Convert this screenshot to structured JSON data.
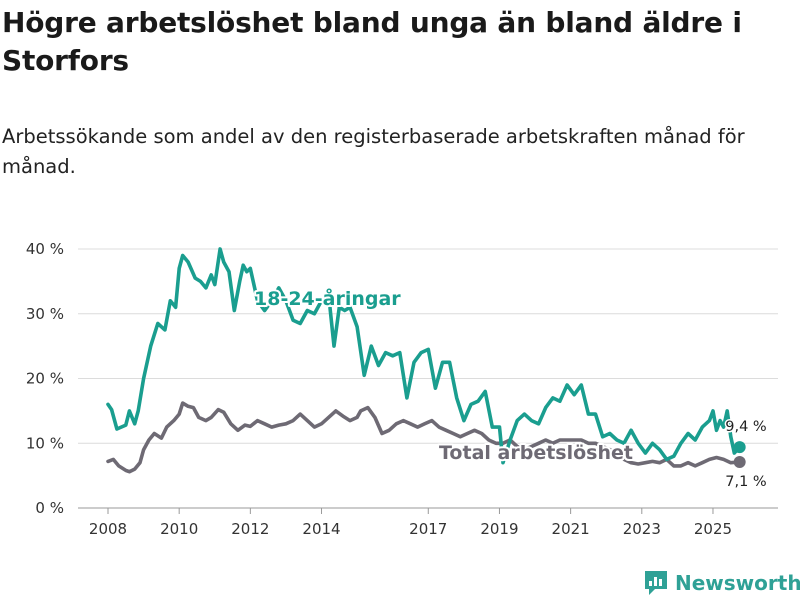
{
  "title": "Högre arbetslöshet bland unga än bland äldre i Storfors",
  "subtitle": "Arbetssökande som andel av den registerbaserade arbetskraften månad för månad.",
  "brand": {
    "name": "Newsworthy"
  },
  "colors": {
    "youth": "#1a9e8f",
    "total": "#6e6a74",
    "grid": "#dcdcdc"
  },
  "chart_data": {
    "type": "line",
    "title": "Högre arbetslöshet bland unga än bland äldre i Storfors",
    "xlabel": "",
    "ylabel": "",
    "ylim": [
      0,
      40
    ],
    "xlim": [
      2008.0,
      2025.9
    ],
    "yticks": [
      0,
      10,
      20,
      30,
      40
    ],
    "ytick_labels": [
      "0 %",
      "10 %",
      "20 %",
      "30 %",
      "40 %"
    ],
    "xticks": [
      2008,
      2010,
      2012,
      2014,
      2017,
      2019,
      2021,
      2023,
      2025
    ],
    "xtick_labels": [
      "2008",
      "2010",
      "2012",
      "2014",
      "2017",
      "2019",
      "2021",
      "2023",
      "2025"
    ],
    "grid": true,
    "series": [
      {
        "name": "18-24-åringar",
        "end_label": "9,4 %",
        "x": [
          2008.0,
          2008.1,
          2008.25,
          2008.5,
          2008.6,
          2008.75,
          2008.85,
          2009.0,
          2009.2,
          2009.4,
          2009.6,
          2009.75,
          2009.9,
          2010.0,
          2010.1,
          2010.25,
          2010.45,
          2010.6,
          2010.75,
          2010.9,
          2011.0,
          2011.15,
          2011.25,
          2011.4,
          2011.55,
          2011.7,
          2011.8,
          2011.9,
          2012.0,
          2012.2,
          2012.4,
          2012.6,
          2012.8,
          2013.0,
          2013.2,
          2013.4,
          2013.6,
          2013.8,
          2014.0,
          2014.2,
          2014.35,
          2014.5,
          2014.65,
          2014.8,
          2015.0,
          2015.2,
          2015.4,
          2015.6,
          2015.8,
          2016.0,
          2016.2,
          2016.4,
          2016.6,
          2016.8,
          2017.0,
          2017.2,
          2017.4,
          2017.6,
          2017.8,
          2018.0,
          2018.2,
          2018.4,
          2018.6,
          2018.8,
          2019.0,
          2019.1,
          2019.3,
          2019.5,
          2019.7,
          2019.9,
          2020.1,
          2020.3,
          2020.5,
          2020.7,
          2020.9,
          2021.1,
          2021.3,
          2021.5,
          2021.7,
          2021.9,
          2022.1,
          2022.3,
          2022.5,
          2022.7,
          2022.9,
          2023.1,
          2023.3,
          2023.5,
          2023.7,
          2023.9,
          2024.1,
          2024.3,
          2024.5,
          2024.7,
          2024.9,
          2025.0,
          2025.1,
          2025.2,
          2025.3,
          2025.4,
          2025.5,
          2025.6,
          2025.75
        ],
        "values": [
          16,
          15.2,
          12.2,
          12.8,
          15,
          13,
          15,
          20,
          25,
          28.5,
          27.5,
          32,
          31,
          37,
          39,
          38,
          35.5,
          35,
          34,
          36,
          34.5,
          40,
          38,
          36.5,
          30.5,
          35,
          37.5,
          36.5,
          37,
          32,
          30.5,
          32,
          34,
          32,
          29,
          28.5,
          30.5,
          30,
          32,
          33,
          25,
          31,
          30.5,
          31,
          28,
          20.5,
          25,
          22,
          24,
          23.5,
          24,
          17,
          22.5,
          24,
          24.5,
          18.5,
          22.5,
          22.5,
          17,
          13.5,
          16,
          16.5,
          18,
          12.5,
          12.5,
          7,
          10.5,
          13.5,
          14.5,
          13.5,
          13,
          15.5,
          17,
          16.5,
          19,
          17.5,
          19,
          14.5,
          14.5,
          11,
          11.5,
          10.5,
          10,
          12,
          10,
          8.5,
          10,
          9,
          7.5,
          8,
          10,
          11.5,
          10.5,
          12.5,
          13.5,
          15,
          12,
          13.5,
          12.5,
          15,
          11,
          8.5,
          9.4
        ]
      },
      {
        "name": "Total arbetslöshet",
        "end_label": "7,1 %",
        "x": [
          2008.0,
          2008.15,
          2008.3,
          2008.5,
          2008.6,
          2008.75,
          2008.9,
          2009.0,
          2009.15,
          2009.3,
          2009.5,
          2009.65,
          2009.85,
          2010.0,
          2010.1,
          2010.25,
          2010.4,
          2010.55,
          2010.75,
          2010.9,
          2011.1,
          2011.25,
          2011.45,
          2011.65,
          2011.85,
          2012.0,
          2012.2,
          2012.4,
          2012.6,
          2012.8,
          2013.0,
          2013.2,
          2013.4,
          2013.6,
          2013.8,
          2014.0,
          2014.2,
          2014.4,
          2014.6,
          2014.8,
          2015.0,
          2015.1,
          2015.3,
          2015.5,
          2015.7,
          2015.9,
          2016.1,
          2016.3,
          2016.5,
          2016.7,
          2016.9,
          2017.1,
          2017.3,
          2017.5,
          2017.7,
          2017.9,
          2018.1,
          2018.3,
          2018.5,
          2018.7,
          2018.9,
          2019.1,
          2019.3,
          2019.5,
          2019.7,
          2019.9,
          2020.1,
          2020.3,
          2020.5,
          2020.7,
          2020.9,
          2021.1,
          2021.3,
          2021.5,
          2021.7,
          2021.9,
          2022.1,
          2022.3,
          2022.5,
          2022.7,
          2022.9,
          2023.1,
          2023.3,
          2023.5,
          2023.7,
          2023.9,
          2024.1,
          2024.3,
          2024.5,
          2024.7,
          2024.9,
          2025.1,
          2025.3,
          2025.5,
          2025.75
        ],
        "values": [
          7.2,
          7.5,
          6.5,
          5.8,
          5.6,
          6,
          7,
          9,
          10.5,
          11.5,
          10.8,
          12.5,
          13.5,
          14.5,
          16.2,
          15.7,
          15.5,
          14,
          13.5,
          14,
          15.2,
          14.8,
          13,
          12,
          12.8,
          12.6,
          13.5,
          13,
          12.5,
          12.8,
          13,
          13.5,
          14.5,
          13.5,
          12.5,
          13,
          14,
          15,
          14.2,
          13.5,
          14,
          15,
          15.5,
          14,
          11.5,
          12,
          13,
          13.5,
          13,
          12.5,
          13,
          13.5,
          12.5,
          12,
          11.5,
          11,
          11.5,
          12,
          11.5,
          10.5,
          10,
          10,
          10.5,
          9.5,
          9,
          9.5,
          10,
          10.5,
          10,
          10.5,
          10.5,
          10.5,
          10.5,
          10,
          10,
          9.5,
          9,
          8.5,
          7.5,
          7,
          6.8,
          7,
          7.2,
          7,
          7.5,
          6.5,
          6.5,
          7,
          6.5,
          7,
          7.5,
          7.8,
          7.5,
          7,
          7.1
        ]
      }
    ]
  }
}
